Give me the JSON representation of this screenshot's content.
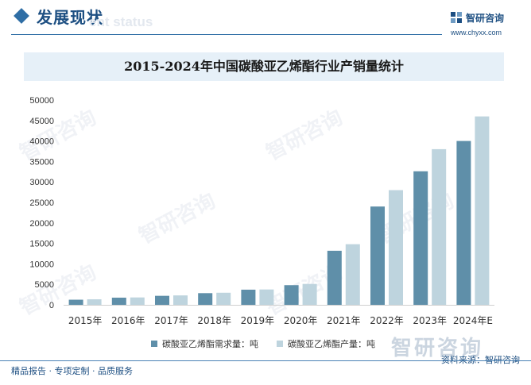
{
  "header": {
    "section_title": "发展现状",
    "section_subtitle_en": "ent status",
    "brand_name": "智研咨询",
    "brand_site": "www.chyxx.com"
  },
  "watermark": {
    "text": "智研咨询"
  },
  "footer": {
    "left": "精品报告 · 专项定制 · 品质服务",
    "source": "资料来源：智研咨询"
  },
  "colors": {
    "demand": "#5f8fa9",
    "production": "#bed4de",
    "accent": "#1d4f82"
  },
  "chart_data": {
    "type": "bar",
    "title": "2015-2024年中国碳酸亚乙烯酯行业产销量统计",
    "categories": [
      "2015年",
      "2016年",
      "2017年",
      "2018年",
      "2019年",
      "2020年",
      "2021年",
      "2022年",
      "2023年",
      "2024年E"
    ],
    "series": [
      {
        "name": "碳酸亚乙烯酯需求量：吨",
        "values": [
          1250,
          1750,
          2200,
          2850,
          3700,
          4800,
          13200,
          24000,
          32600,
          40000
        ]
      },
      {
        "name": "碳酸亚乙烯酯产量：吨",
        "values": [
          1350,
          1800,
          2300,
          2950,
          3750,
          5100,
          14800,
          28000,
          38000,
          46000
        ]
      }
    ],
    "ylim": [
      0,
      50000
    ],
    "yticks": [
      0,
      5000,
      10000,
      15000,
      20000,
      25000,
      30000,
      35000,
      40000,
      45000,
      50000
    ],
    "xlabel": "",
    "ylabel": "",
    "grid": false,
    "legend_position": "bottom"
  }
}
